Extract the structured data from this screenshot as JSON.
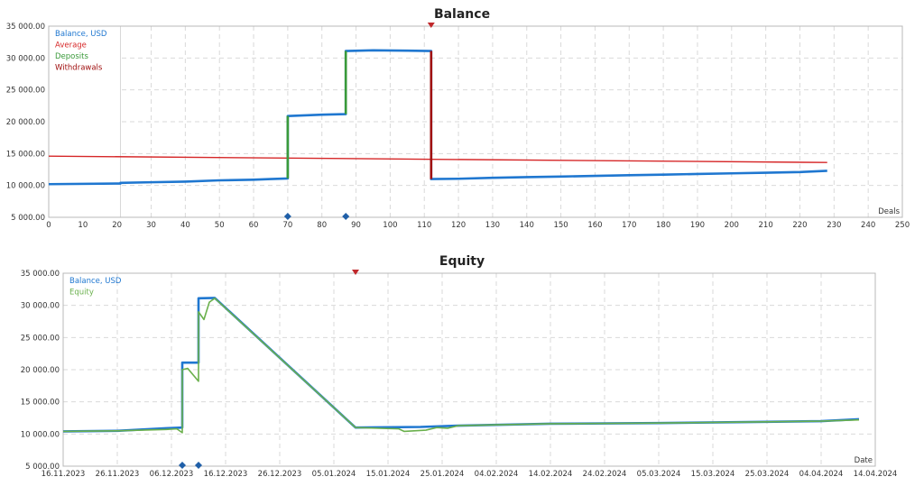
{
  "chart_data": [
    {
      "type": "line",
      "title": "Balance",
      "xlabel": "Deals",
      "ylabel": "",
      "xlim": [
        0,
        250
      ],
      "ylim": [
        5000,
        35000
      ],
      "xticks": [
        0,
        10,
        20,
        30,
        40,
        50,
        60,
        70,
        80,
        90,
        100,
        110,
        120,
        130,
        140,
        150,
        160,
        170,
        180,
        190,
        200,
        210,
        220,
        230,
        240,
        250
      ],
      "yticks": [
        5000,
        10000,
        15000,
        20000,
        25000,
        30000,
        35000
      ],
      "ytick_labels": [
        "5 000.00",
        "10 000.00",
        "15 000.00",
        "20 000.00",
        "25 000.00",
        "30 000.00",
        "35 000.00"
      ],
      "grid": true,
      "legend_position": "top-left",
      "legend": [
        {
          "label": "Balance, USD",
          "color": "#1f77d0"
        },
        {
          "label": "Average",
          "color": "#d62728"
        },
        {
          "label": "Deposits",
          "color": "#3a9a3a"
        },
        {
          "label": "Withdrawals",
          "color": "#a01010"
        }
      ],
      "series": [
        {
          "name": "Balance, USD",
          "color": "#1f77d0",
          "x": [
            0,
            21,
            21,
            30,
            40,
            50,
            60,
            65,
            70,
            70,
            80,
            87,
            87,
            95,
            105,
            112,
            112,
            120,
            130,
            140,
            150,
            160,
            170,
            180,
            190,
            200,
            210,
            220,
            228
          ],
          "y": [
            10200,
            10300,
            10400,
            10500,
            10600,
            10800,
            10900,
            11000,
            11100,
            20900,
            21100,
            21200,
            31100,
            31200,
            31150,
            31100,
            11000,
            11050,
            11200,
            11300,
            11400,
            11500,
            11600,
            11700,
            11800,
            11900,
            12000,
            12100,
            12300
          ]
        },
        {
          "name": "Average",
          "color": "#d62728",
          "x": [
            0,
            228
          ],
          "y": [
            14600,
            13600
          ]
        },
        {
          "name": "Deposits",
          "color": "#3a9a3a",
          "segments": [
            {
              "x": [
                70,
                70
              ],
              "y": [
                11100,
                20900
              ]
            },
            {
              "x": [
                87,
                87
              ],
              "y": [
                21200,
                31100
              ]
            }
          ]
        },
        {
          "name": "Withdrawals",
          "color": "#a01010",
          "segments": [
            {
              "x": [
                112,
                112
              ],
              "y": [
                31100,
                11000
              ]
            }
          ]
        }
      ],
      "markers": [
        {
          "type": "deposit",
          "x": 70,
          "color": "#1f5fa8"
        },
        {
          "type": "deposit",
          "x": 87,
          "color": "#1f5fa8"
        },
        {
          "type": "withdrawal",
          "x": 112,
          "color": "#c0282b"
        }
      ],
      "highlight_x_max": 21
    },
    {
      "type": "line",
      "title": "Equity",
      "xlabel": "Date",
      "ylabel": "",
      "ylim": [
        5000,
        35000
      ],
      "xlim": [
        "2023-11-16",
        "2024-04-14"
      ],
      "xtick_dates": [
        "2023-11-16",
        "2023-11-26",
        "2023-12-06",
        "2023-12-16",
        "2023-12-26",
        "2024-01-05",
        "2024-01-15",
        "2024-01-25",
        "2024-02-04",
        "2024-02-14",
        "2024-02-24",
        "2024-03-05",
        "2024-03-15",
        "2024-03-25",
        "2024-04-04",
        "2024-04-14"
      ],
      "xtick_labels": [
        "16.11.2023",
        "26.11.2023",
        "06.12.2023",
        "16.12.2023",
        "26.12.2023",
        "05.01.2024",
        "15.01.2024",
        "25.01.2024",
        "04.02.2024",
        "14.02.2024",
        "24.02.2024",
        "05.03.2024",
        "15.03.2024",
        "25.03.2024",
        "04.04.2024",
        "14.04.2024"
      ],
      "yticks": [
        5000,
        10000,
        15000,
        20000,
        25000,
        30000,
        35000
      ],
      "ytick_labels": [
        "5 000.00",
        "10 000.00",
        "15 000.00",
        "20 000.00",
        "25 000.00",
        "30 000.00",
        "35 000.00"
      ],
      "grid": true,
      "legend_position": "top-left",
      "legend": [
        {
          "label": "Balance, USD",
          "color": "#1f77d0"
        },
        {
          "label": "Equity",
          "color": "#6ab04c"
        }
      ],
      "series": [
        {
          "name": "Balance, USD",
          "color": "#1f77d0",
          "x": [
            "2023-11-16",
            "2023-11-26",
            "2023-12-05",
            "2023-12-08",
            "2023-12-08",
            "2023-12-11",
            "2023-12-11",
            "2023-12-14",
            "2024-01-09",
            "2024-01-21",
            "2024-01-28",
            "2024-02-14",
            "2024-03-05",
            "2024-03-25",
            "2024-04-04",
            "2024-04-11"
          ],
          "y": [
            10400,
            10500,
            10900,
            11000,
            21100,
            21100,
            31100,
            31150,
            11000,
            11100,
            11300,
            11600,
            11700,
            11900,
            12000,
            12300
          ]
        },
        {
          "name": "Equity",
          "color": "#6ab04c",
          "x": [
            "2023-11-16",
            "2023-11-26",
            "2023-12-05",
            "2023-12-07",
            "2023-12-08",
            "2023-12-08",
            "2023-12-09",
            "2023-12-11",
            "2023-12-11",
            "2023-12-12",
            "2023-12-13",
            "2023-12-14",
            "2024-01-09",
            "2024-01-17",
            "2024-01-18",
            "2024-01-22",
            "2024-01-24",
            "2024-01-26",
            "2024-01-28",
            "2024-02-14",
            "2024-03-05",
            "2024-03-25",
            "2024-04-04",
            "2024-04-11"
          ],
          "y": [
            10400,
            10500,
            10700,
            10800,
            10200,
            20000,
            20200,
            18200,
            29000,
            27800,
            30500,
            31100,
            11000,
            10800,
            10400,
            10600,
            11000,
            10900,
            11300,
            11600,
            11700,
            11900,
            12000,
            12200
          ]
        }
      ],
      "markers": [
        {
          "type": "deposit",
          "x": "2023-12-08",
          "color": "#1f5fa8"
        },
        {
          "type": "deposit",
          "x": "2023-12-11",
          "color": "#1f5fa8"
        },
        {
          "type": "withdrawal",
          "x": "2024-01-09",
          "color": "#c0282b"
        }
      ]
    }
  ]
}
